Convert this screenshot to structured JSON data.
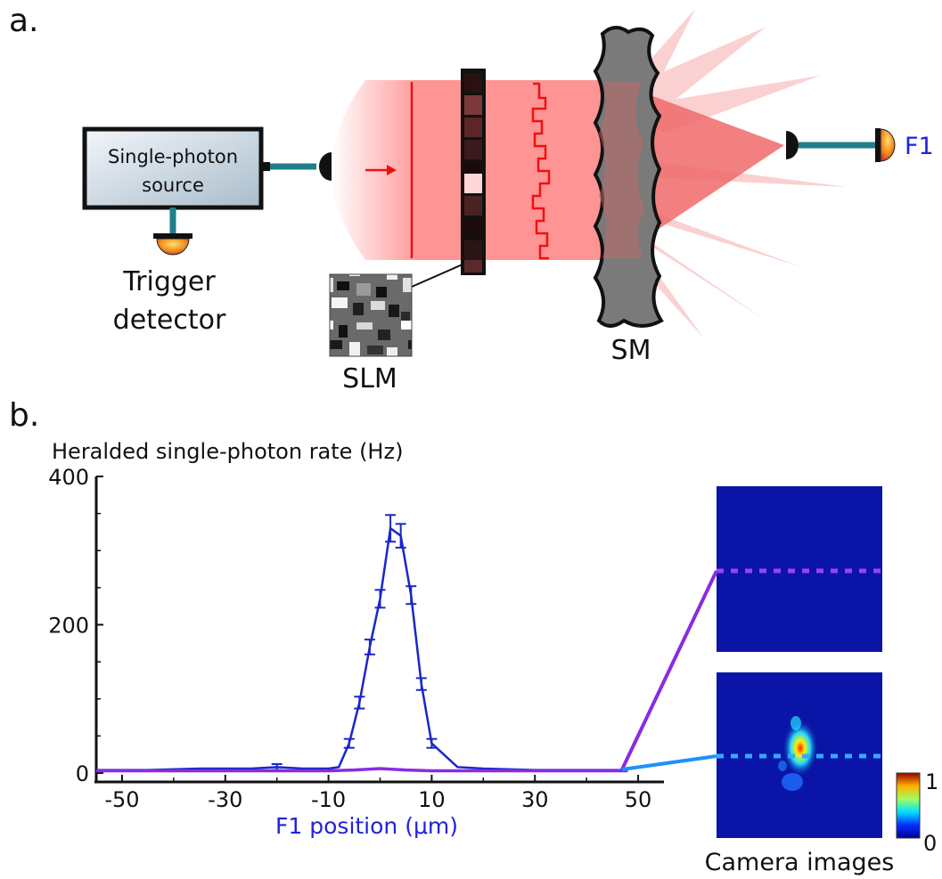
{
  "panel_a": {
    "label": "a.",
    "source_label_line1": "Single-photon",
    "source_label_line2": "source",
    "trigger_line1": "Trigger",
    "trigger_line2": "detector",
    "slm_label": "SLM",
    "sm_label": "SM",
    "f1_label": "F1"
  },
  "panel_b": {
    "label": "b.",
    "camera_caption": "Camera images",
    "colorbar_max": "1",
    "colorbar_min": "0"
  },
  "colors": {
    "beam": "#ff8f8f",
    "beam_dark": "#f06a6a",
    "red_line": "#ee1111",
    "teal": "#1f7f8a",
    "focused_curve": "#1a27c8",
    "unfocused_curve": "#8a2be2",
    "cam_bg": "#0a14a6",
    "purple_link": "#8a2be2",
    "cyan_link": "#1e90ff"
  },
  "chart_data": {
    "type": "line",
    "title": "Heralded single-photon rate (Hz)",
    "xlabel": "F1 position (μm)",
    "ylabel": "",
    "xlim": [
      -55,
      55
    ],
    "ylim": [
      0,
      400
    ],
    "xticks": [
      -50,
      -30,
      -10,
      10,
      30,
      50
    ],
    "yticks": [
      0,
      200,
      400
    ],
    "series": [
      {
        "x": [
          -55,
          -45,
          -35,
          -25,
          -20,
          -15,
          -10,
          -8,
          -6,
          -4,
          -2,
          0,
          2,
          4,
          6,
          8,
          10,
          15,
          20,
          30,
          40,
          48
        ],
        "y": [
          4,
          4,
          6,
          6,
          8,
          6,
          6,
          8,
          40,
          95,
          170,
          235,
          330,
          320,
          240,
          120,
          40,
          8,
          6,
          4,
          4,
          4
        ],
        "err": [
          0,
          0,
          0,
          0,
          4,
          0,
          0,
          0,
          6,
          8,
          10,
          12,
          18,
          16,
          12,
          8,
          6,
          0,
          0,
          0,
          0,
          0
        ]
      },
      {
        "x": [
          -55,
          -45,
          -35,
          -25,
          -15,
          -10,
          -5,
          0,
          5,
          10,
          20,
          30,
          40,
          48
        ],
        "y": [
          3,
          3,
          3,
          3,
          3,
          3,
          4,
          6,
          4,
          3,
          3,
          3,
          3,
          3
        ]
      }
    ]
  }
}
